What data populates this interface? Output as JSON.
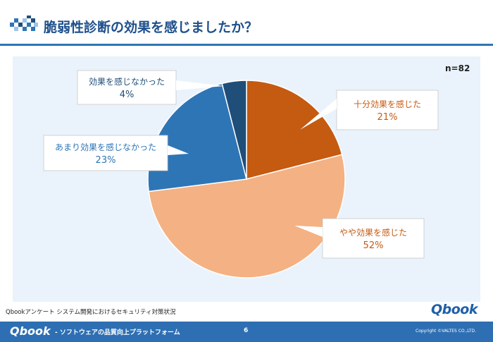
{
  "header": {
    "title": "脆弱性診断の効果を感じましたか？"
  },
  "chart_data": {
    "type": "pie",
    "title": "",
    "n_label": "n=82",
    "slices": [
      {
        "label": "十分効果を感じた",
        "percent_label": "21%",
        "value": 21,
        "color": "#c55a11",
        "text_color": "#c55a11"
      },
      {
        "label": "やや効果を感じた",
        "percent_label": "52%",
        "value": 52,
        "color": "#f4b183",
        "text_color": "#c55a11"
      },
      {
        "label": "あまり効果を感じなかった",
        "percent_label": "23%",
        "value": 23,
        "color": "#2e75b6",
        "text_color": "#2e75b6"
      },
      {
        "label": "効果を感じなかった",
        "percent_label": "4%",
        "value": 4,
        "color": "#1f4e79",
        "text_color": "#1f4e79"
      }
    ]
  },
  "source_note": "Qbookアンケート システム開発におけるセキュリティ対策状況",
  "brand": {
    "logo_text": "Qbook"
  },
  "footer": {
    "logo_text": "Qbook",
    "tagline": "- ソフトウェアの品質向上プラットフォーム",
    "page_number": "6",
    "copyright": "Copyright ©VALTES CO.,LTD."
  },
  "colors": {
    "accent": "#2e75b6",
    "title": "#1d4f8c",
    "panel": "#eaf3fb"
  }
}
